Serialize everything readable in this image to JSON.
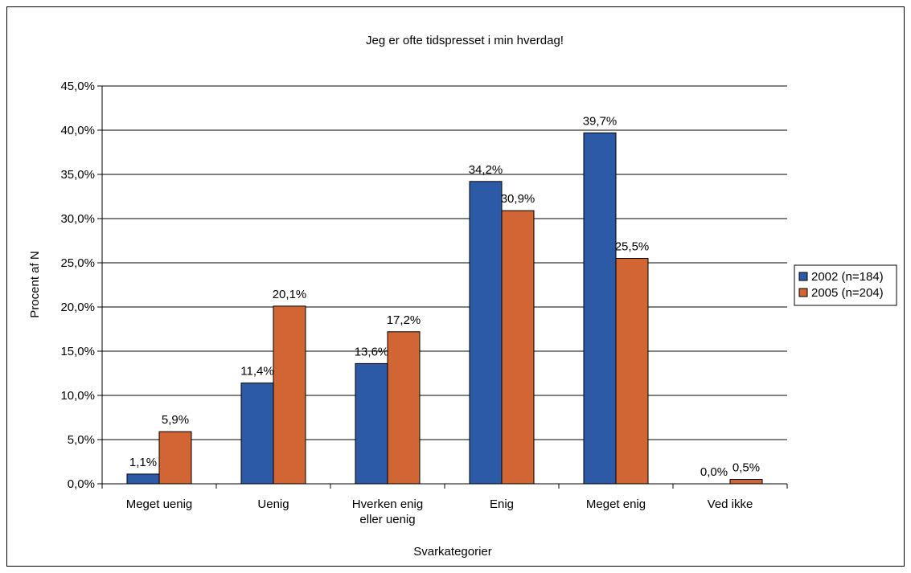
{
  "chart_data": {
    "type": "bar",
    "title": "Jeg er ofte tidspresset i min hverdag!",
    "xlabel": "Svarkategorier",
    "ylabel": "Procent af N",
    "ylim": [
      0,
      45
    ],
    "ytick_step": 5,
    "yticks": [
      "0,0%",
      "5,0%",
      "10,0%",
      "15,0%",
      "20,0%",
      "25,0%",
      "30,0%",
      "35,0%",
      "40,0%",
      "45,0%"
    ],
    "grid": true,
    "legend_position": "right",
    "categories": [
      [
        "Meget uenig"
      ],
      [
        "Uenig"
      ],
      [
        "Hverken enig",
        "eller uenig"
      ],
      [
        "Enig"
      ],
      [
        "Meget enig"
      ],
      [
        "Ved ikke"
      ]
    ],
    "series": [
      {
        "name": "2002 (n=184)",
        "color": "#2d5aa7",
        "values": [
          1.1,
          11.4,
          13.6,
          34.2,
          39.7,
          0.0
        ],
        "labels": [
          "1,1%",
          "11,4%",
          "13,6%",
          "34,2%",
          "39,7%",
          "0,0%"
        ]
      },
      {
        "name": "2005 (n=204)",
        "color": "#d16534",
        "values": [
          5.9,
          20.1,
          17.2,
          30.9,
          25.5,
          0.5
        ],
        "labels": [
          "5,9%",
          "20,1%",
          "17,2%",
          "30,9%",
          "25,5%",
          "0,5%"
        ]
      }
    ]
  }
}
